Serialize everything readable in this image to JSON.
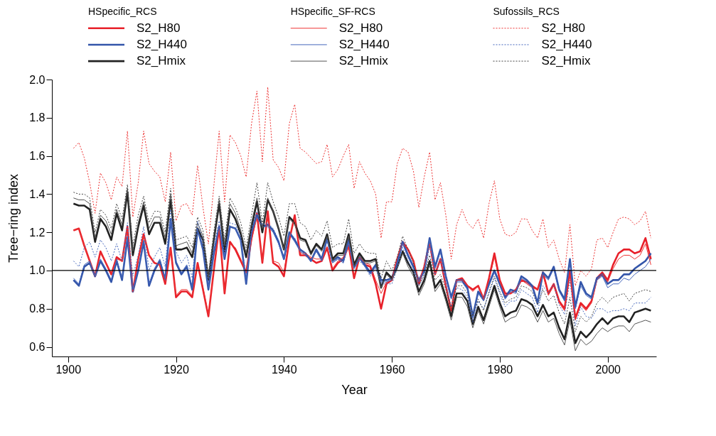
{
  "chart_data": {
    "type": "line",
    "xlabel": "Year",
    "ylabel": "Tree−ring index",
    "legend_title": [
      "HSpecific_RCS",
      "HSpecific_SF-RCS",
      "Sufossils_RCS"
    ],
    "legend": "top",
    "grid": false,
    "xlim": [
      1897,
      2009
    ],
    "xticks": [
      1900,
      1920,
      1940,
      1960,
      1980,
      2000
    ],
    "ylim": [
      0.55,
      2.0
    ],
    "yticks": [
      0.6,
      0.8,
      {
        "value": 1,
        "label": "1.0"
      },
      1.2,
      1.4,
      1.6,
      1.8,
      {
        "value": 2,
        "label": "2.0"
      }
    ],
    "ref_lines": [
      {
        "axis": "y",
        "value": 1.0
      }
    ],
    "x": [
      1901,
      1902,
      1903,
      1904,
      1905,
      1906,
      1907,
      1908,
      1909,
      1910,
      1911,
      1912,
      1913,
      1914,
      1915,
      1916,
      1917,
      1918,
      1919,
      1920,
      1921,
      1922,
      1923,
      1924,
      1925,
      1926,
      1927,
      1928,
      1929,
      1930,
      1931,
      1932,
      1933,
      1934,
      1935,
      1936,
      1937,
      1938,
      1939,
      1940,
      1941,
      1942,
      1943,
      1944,
      1945,
      1946,
      1947,
      1948,
      1949,
      1950,
      1951,
      1952,
      1953,
      1954,
      1955,
      1956,
      1957,
      1958,
      1959,
      1960,
      1961,
      1962,
      1963,
      1964,
      1965,
      1966,
      1967,
      1968,
      1969,
      1970,
      1971,
      1972,
      1973,
      1974,
      1975,
      1976,
      1977,
      1978,
      1979,
      1980,
      1981,
      1982,
      1983,
      1984,
      1985,
      1986,
      1987,
      1988,
      1989,
      1990,
      1991,
      1992,
      1993,
      1994,
      1995,
      1996,
      1997,
      1998,
      1999,
      2000,
      2001,
      2002,
      2003,
      2004,
      2005,
      2006,
      2007,
      2008
    ],
    "series": [
      {
        "name": "S2_H80",
        "color": "#e8202a",
        "line_style": "solid",
        "values": [
          1.21,
          1.22,
          1.13,
          1.05,
          0.97,
          1.1,
          1.04,
          0.98,
          1.07,
          1.05,
          1.23,
          0.89,
          1.06,
          1.19,
          1.08,
          1.04,
          1.03,
          0.93,
          1.12,
          0.86,
          0.89,
          0.89,
          0.86,
          1.04,
          0.9,
          0.76,
          1.0,
          1.23,
          0.88,
          1.15,
          1.11,
          1.05,
          0.99,
          1.17,
          1.3,
          1.04,
          1.31,
          1.04,
          1.02,
          0.97,
          1.16,
          1.29,
          1.08,
          1.08,
          1.06,
          1.04,
          1.05,
          1.12,
          1.0,
          1.04,
          1.06,
          1.13,
          0.96,
          1.07,
          1.03,
          1.02,
          0.93,
          0.8,
          0.93,
          0.95,
          1.06,
          1.15,
          1.11,
          1.05,
          0.93,
          1.02,
          1.15,
          0.98,
          1.06,
          0.92,
          0.79,
          0.95,
          0.96,
          0.92,
          0.9,
          0.92,
          0.85,
          0.96,
          1.09,
          0.95,
          0.88,
          0.88,
          0.9,
          0.95,
          0.94,
          0.92,
          0.9,
          0.99,
          0.88,
          0.93,
          0.84,
          0.8,
          1.0,
          0.75,
          0.83,
          0.8,
          0.84,
          0.96,
          0.99,
          0.95,
          1.03,
          1.09,
          1.11,
          1.11,
          1.09,
          1.1,
          1.17,
          1.06
        ]
      },
      {
        "name": "S2_H440",
        "color": "#3355aa",
        "line_style": "solid",
        "values": [
          0.95,
          0.92,
          1.02,
          1.04,
          0.97,
          1.05,
          1.0,
          0.94,
          1.05,
          0.95,
          1.17,
          0.89,
          1.0,
          1.15,
          0.92,
          1.0,
          1.05,
          0.95,
          1.27,
          1.04,
          0.98,
          1.02,
          0.9,
          1.22,
          1.11,
          0.9,
          1.09,
          1.23,
          1.06,
          1.23,
          1.22,
          1.16,
          0.93,
          1.2,
          1.29,
          1.23,
          1.24,
          1.21,
          1.15,
          1.06,
          1.2,
          1.16,
          1.11,
          1.09,
          1.05,
          1.11,
          1.06,
          1.17,
          1.05,
          1.07,
          1.05,
          1.16,
          1.02,
          1.07,
          1.03,
          0.99,
          1.03,
          0.95,
          0.95,
          0.96,
          1.04,
          1.15,
          1.08,
          1.02,
          0.95,
          1.0,
          1.17,
          1.02,
          1.11,
          0.97,
          0.86,
          0.95,
          0.95,
          0.91,
          0.76,
          0.89,
          0.85,
          0.93,
          1.0,
          0.93,
          0.86,
          0.9,
          0.89,
          0.97,
          0.95,
          0.92,
          0.83,
          0.99,
          0.96,
          1.02,
          0.9,
          0.85,
          1.06,
          0.81,
          0.94,
          0.88,
          0.86,
          0.96,
          0.98,
          0.93,
          0.95,
          0.95,
          0.98,
          0.98,
          1.01,
          1.03,
          1.05,
          1.09
        ]
      },
      {
        "name": "S2_Hmix",
        "color": "#222222",
        "line_style": "solid",
        "values": [
          1.35,
          1.34,
          1.34,
          1.32,
          1.15,
          1.27,
          1.23,
          1.16,
          1.3,
          1.21,
          1.41,
          1.08,
          1.23,
          1.34,
          1.19,
          1.25,
          1.25,
          1.14,
          1.37,
          1.11,
          1.11,
          1.12,
          1.07,
          1.22,
          1.16,
          0.95,
          1.16,
          1.35,
          1.1,
          1.32,
          1.27,
          1.19,
          1.07,
          1.23,
          1.36,
          1.2,
          1.37,
          1.31,
          1.22,
          1.11,
          1.28,
          1.25,
          1.17,
          1.16,
          1.09,
          1.14,
          1.11,
          1.19,
          1.06,
          1.09,
          1.09,
          1.19,
          1.03,
          1.09,
          1.05,
          1.05,
          1.06,
          0.91,
          0.99,
          0.96,
          1.02,
          1.1,
          1.04,
          0.99,
          0.89,
          0.95,
          1.05,
          0.91,
          0.95,
          0.86,
          0.76,
          0.88,
          0.88,
          0.84,
          0.72,
          0.81,
          0.74,
          0.83,
          0.92,
          0.83,
          0.76,
          0.78,
          0.79,
          0.85,
          0.84,
          0.82,
          0.76,
          0.82,
          0.76,
          0.78,
          0.7,
          0.64,
          0.78,
          0.62,
          0.68,
          0.65,
          0.68,
          0.72,
          0.75,
          0.72,
          0.75,
          0.76,
          0.76,
          0.73,
          0.78,
          0.79,
          0.8,
          0.79
        ]
      },
      {
        "name": "S2_H80",
        "color": "#ee3333",
        "line_style": "solid",
        "values": [
          1.21,
          1.22,
          1.13,
          1.05,
          0.97,
          1.09,
          1.04,
          0.98,
          1.06,
          1.05,
          1.22,
          0.89,
          1.06,
          1.18,
          1.08,
          1.04,
          1.03,
          0.94,
          1.11,
          0.87,
          0.9,
          0.9,
          0.87,
          1.03,
          0.91,
          0.77,
          1.0,
          1.22,
          0.89,
          1.14,
          1.12,
          1.06,
          0.99,
          1.16,
          1.28,
          1.05,
          1.29,
          1.05,
          1.04,
          0.99,
          1.17,
          1.27,
          1.09,
          1.09,
          1.07,
          1.06,
          1.06,
          1.12,
          1.01,
          1.05,
          1.07,
          1.12,
          0.97,
          1.07,
          1.04,
          1.03,
          0.95,
          0.88,
          0.94,
          0.95,
          1.07,
          1.14,
          1.11,
          1.05,
          0.94,
          1.02,
          1.14,
          0.98,
          1.06,
          0.92,
          0.8,
          0.95,
          0.95,
          0.92,
          0.89,
          0.92,
          0.85,
          0.95,
          1.07,
          0.94,
          0.87,
          0.88,
          0.9,
          0.95,
          0.93,
          0.91,
          0.9,
          0.98,
          0.87,
          0.92,
          0.83,
          0.79,
          0.98,
          0.74,
          0.82,
          0.79,
          0.83,
          0.95,
          0.98,
          0.94,
          1.01,
          1.06,
          1.08,
          1.08,
          1.06,
          1.08,
          1.14,
          1.03
        ]
      },
      {
        "name": "S2_H440",
        "color": "#4466bb",
        "line_style": "solid",
        "values": [
          0.96,
          0.93,
          1.03,
          1.05,
          0.97,
          1.06,
          1.01,
          0.95,
          1.06,
          0.96,
          1.18,
          0.9,
          1.01,
          1.16,
          0.93,
          1.01,
          1.06,
          0.96,
          1.26,
          1.05,
          0.99,
          1.03,
          0.91,
          1.22,
          1.11,
          0.91,
          1.1,
          1.23,
          1.07,
          1.23,
          1.22,
          1.16,
          0.94,
          1.2,
          1.28,
          1.23,
          1.23,
          1.2,
          1.14,
          1.06,
          1.19,
          1.15,
          1.1,
          1.08,
          1.05,
          1.1,
          1.05,
          1.16,
          1.04,
          1.06,
          1.04,
          1.15,
          1.01,
          1.06,
          1.02,
          0.98,
          1.02,
          0.94,
          0.94,
          0.95,
          1.03,
          1.14,
          1.07,
          1.01,
          0.94,
          0.99,
          1.16,
          1.01,
          1.1,
          0.96,
          0.85,
          0.94,
          0.94,
          0.9,
          0.75,
          0.88,
          0.84,
          0.92,
          0.99,
          0.92,
          0.85,
          0.89,
          0.88,
          0.96,
          0.94,
          0.91,
          0.82,
          0.98,
          0.95,
          1.01,
          0.89,
          0.84,
          1.04,
          0.8,
          0.92,
          0.87,
          0.85,
          0.95,
          0.97,
          0.91,
          0.93,
          0.93,
          0.96,
          0.95,
          0.98,
          1.0,
          1.02,
          1.06
        ]
      },
      {
        "name": "S2_Hmix",
        "color": "#555555",
        "line_style": "solid",
        "values": [
          1.38,
          1.37,
          1.37,
          1.35,
          1.17,
          1.29,
          1.26,
          1.19,
          1.32,
          1.24,
          1.43,
          1.1,
          1.25,
          1.36,
          1.22,
          1.28,
          1.28,
          1.17,
          1.4,
          1.13,
          1.14,
          1.15,
          1.09,
          1.25,
          1.18,
          0.96,
          1.18,
          1.37,
          1.13,
          1.35,
          1.3,
          1.21,
          1.09,
          1.25,
          1.38,
          1.22,
          1.38,
          1.31,
          1.22,
          1.11,
          1.27,
          1.24,
          1.16,
          1.15,
          1.08,
          1.13,
          1.1,
          1.18,
          1.05,
          1.08,
          1.08,
          1.18,
          1.02,
          1.08,
          1.04,
          1.04,
          1.05,
          0.91,
          0.98,
          0.95,
          1.01,
          1.09,
          1.02,
          0.97,
          0.87,
          0.93,
          1.03,
          0.89,
          0.93,
          0.84,
          0.74,
          0.86,
          0.86,
          0.81,
          0.7,
          0.79,
          0.72,
          0.81,
          0.9,
          0.81,
          0.73,
          0.75,
          0.76,
          0.82,
          0.81,
          0.79,
          0.73,
          0.79,
          0.73,
          0.75,
          0.67,
          0.61,
          0.74,
          0.58,
          0.64,
          0.61,
          0.63,
          0.67,
          0.7,
          0.68,
          0.7,
          0.71,
          0.71,
          0.68,
          0.72,
          0.73,
          0.74,
          0.73
        ]
      },
      {
        "name": "S2_H80",
        "color": "#ee3333",
        "line_style": "dotted",
        "values": [
          1.64,
          1.67,
          1.59,
          1.46,
          1.3,
          1.51,
          1.46,
          1.37,
          1.49,
          1.44,
          1.73,
          1.28,
          1.46,
          1.73,
          1.56,
          1.52,
          1.49,
          1.36,
          1.62,
          1.26,
          1.34,
          1.35,
          1.29,
          1.55,
          1.33,
          1.14,
          1.44,
          1.73,
          1.36,
          1.71,
          1.67,
          1.6,
          1.49,
          1.77,
          1.94,
          1.57,
          1.96,
          1.58,
          1.54,
          1.47,
          1.77,
          1.87,
          1.64,
          1.62,
          1.59,
          1.56,
          1.57,
          1.66,
          1.49,
          1.53,
          1.6,
          1.66,
          1.43,
          1.57,
          1.51,
          1.47,
          1.4,
          1.17,
          1.36,
          1.36,
          1.56,
          1.64,
          1.62,
          1.52,
          1.33,
          1.49,
          1.62,
          1.37,
          1.46,
          1.29,
          1.06,
          1.24,
          1.32,
          1.25,
          1.22,
          1.27,
          1.17,
          1.35,
          1.47,
          1.27,
          1.19,
          1.18,
          1.2,
          1.27,
          1.27,
          1.21,
          1.17,
          1.27,
          1.12,
          1.16,
          1.06,
          0.99,
          1.24,
          0.92,
          1.0,
          0.97,
          1.01,
          1.16,
          1.17,
          1.12,
          1.2,
          1.27,
          1.28,
          1.27,
          1.24,
          1.26,
          1.31,
          1.17
        ]
      },
      {
        "name": "S2_H440",
        "color": "#4466bb",
        "line_style": "dotted",
        "values": [
          1.05,
          1.02,
          1.12,
          1.15,
          1.07,
          1.16,
          1.12,
          1.05,
          1.14,
          1.05,
          1.25,
          0.97,
          1.08,
          1.23,
          1.0,
          1.07,
          1.12,
          1.02,
          1.32,
          1.1,
          1.04,
          1.08,
          0.96,
          1.26,
          1.15,
          0.94,
          1.13,
          1.26,
          1.09,
          1.25,
          1.24,
          1.18,
          0.96,
          1.22,
          1.31,
          1.24,
          1.25,
          1.22,
          1.16,
          1.07,
          1.2,
          1.17,
          1.11,
          1.09,
          1.05,
          1.11,
          1.06,
          1.16,
          1.04,
          1.06,
          1.04,
          1.14,
          1.01,
          1.05,
          1.02,
          0.97,
          1.01,
          0.93,
          0.93,
          0.93,
          1.01,
          1.12,
          1.05,
          0.99,
          0.92,
          0.97,
          1.13,
          0.98,
          1.06,
          0.93,
          0.81,
          0.91,
          0.9,
          0.86,
          0.73,
          0.84,
          0.8,
          0.88,
          0.96,
          0.88,
          0.81,
          0.84,
          0.84,
          0.9,
          0.88,
          0.86,
          0.78,
          0.92,
          0.88,
          0.93,
          0.82,
          0.77,
          0.95,
          0.71,
          0.81,
          0.76,
          0.75,
          0.8,
          0.8,
          0.78,
          0.79,
          0.79,
          0.8,
          0.79,
          0.83,
          0.83,
          0.83,
          0.86
        ]
      },
      {
        "name": "S2_Hmix",
        "color": "#444444",
        "line_style": "dotted",
        "values": [
          1.41,
          1.4,
          1.4,
          1.38,
          1.2,
          1.32,
          1.29,
          1.22,
          1.35,
          1.27,
          1.45,
          1.13,
          1.29,
          1.39,
          1.25,
          1.31,
          1.31,
          1.2,
          1.43,
          1.16,
          1.17,
          1.18,
          1.12,
          1.28,
          1.21,
          0.98,
          1.2,
          1.39,
          1.16,
          1.38,
          1.33,
          1.25,
          1.12,
          1.29,
          1.46,
          1.25,
          1.46,
          1.36,
          1.28,
          1.18,
          1.35,
          1.35,
          1.25,
          1.23,
          1.16,
          1.21,
          1.18,
          1.26,
          1.12,
          1.14,
          1.14,
          1.27,
          1.09,
          1.14,
          1.1,
          1.09,
          1.09,
          0.96,
          1.05,
          1.0,
          1.07,
          1.18,
          1.11,
          1.04,
          0.92,
          0.98,
          1.08,
          0.95,
          0.98,
          0.9,
          0.8,
          0.92,
          0.92,
          0.88,
          0.76,
          0.85,
          0.79,
          0.89,
          0.97,
          0.89,
          0.83,
          0.85,
          0.86,
          0.92,
          0.91,
          0.89,
          0.82,
          0.9,
          0.84,
          0.87,
          0.78,
          0.72,
          0.86,
          0.68,
          0.76,
          0.73,
          0.76,
          0.83,
          0.86,
          0.83,
          0.86,
          0.87,
          0.88,
          0.84,
          0.88,
          0.89,
          0.9,
          0.89
        ]
      }
    ]
  }
}
